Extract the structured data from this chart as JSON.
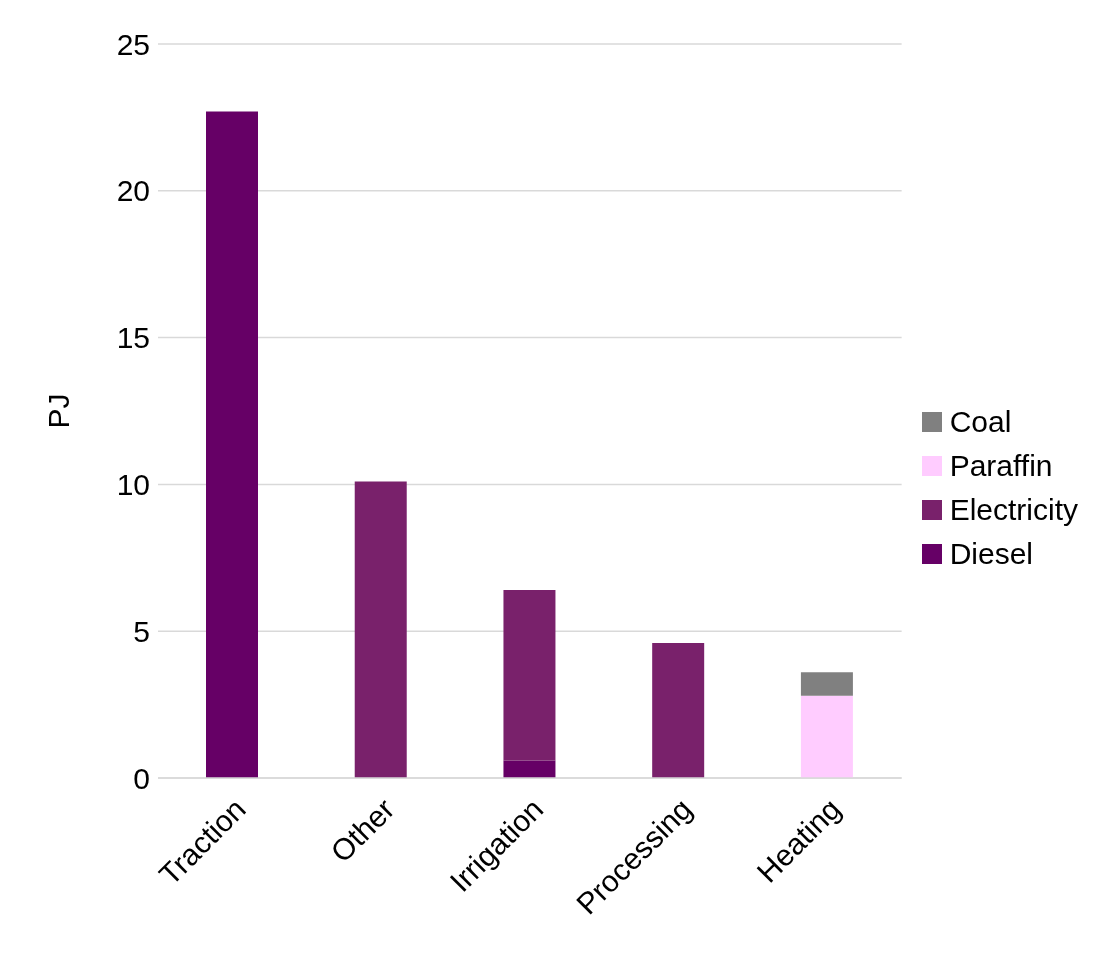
{
  "chart_data": {
    "type": "bar",
    "stacked": true,
    "ylabel": "PJ",
    "categories": [
      "Traction",
      "Other",
      "Irrigation",
      "Processing",
      "Heating"
    ],
    "series": [
      {
        "name": "Diesel",
        "color": "#660066",
        "values": [
          22.7,
          null,
          0.6,
          null,
          null
        ]
      },
      {
        "name": "Electricity",
        "color": "#79216b",
        "values": [
          null,
          10.1,
          5.8,
          4.6,
          null
        ]
      },
      {
        "name": "Paraffin",
        "color": "#ffccff",
        "values": [
          null,
          null,
          null,
          null,
          2.8
        ]
      },
      {
        "name": "Coal",
        "color": "#808080",
        "values": [
          null,
          null,
          null,
          null,
          0.8
        ]
      }
    ],
    "ylim": [
      0,
      25
    ],
    "yticks": [
      0,
      5,
      10,
      15,
      20,
      25
    ],
    "grid": "y",
    "legend": "right"
  }
}
